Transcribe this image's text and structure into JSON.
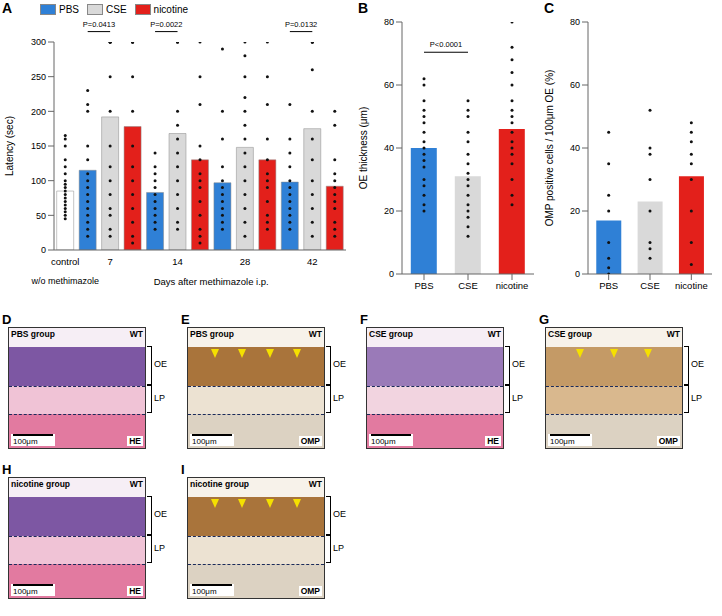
{
  "chart_data": [
    {
      "panel": "A",
      "type": "bar",
      "y_label": "Latency (sec)",
      "ylim": [
        0,
        300
      ],
      "yticks": [
        0,
        50,
        100,
        150,
        200,
        250,
        300
      ],
      "legend": "top-left",
      "control": {
        "category": "control",
        "group_label": "w/o methimazole",
        "color": "#ffffff",
        "value": 85,
        "points": [
          165,
          160,
          150,
          130,
          120,
          110,
          100,
          95,
          90,
          85,
          80,
          75,
          70,
          65,
          60,
          55,
          50,
          45
        ]
      },
      "x_label": "Days after methimazole i.p.",
      "categories": [
        "7",
        "14",
        "28",
        "42"
      ],
      "series": [
        {
          "name": "PBS",
          "color": "#2f80d6",
          "values": [
            115,
            83,
            97,
            98
          ],
          "points": [
            [
              230,
              210,
              200,
              150,
              130,
              110,
              100,
              90,
              80,
              70,
              60,
              50,
              40,
              30,
              20
            ],
            [
              140,
              120,
              110,
              100,
              90,
              80,
              70,
              60,
              50,
              40,
              30
            ],
            [
              290,
              200,
              160,
              120,
              100,
              90,
              80,
              70,
              60,
              50,
              40,
              30
            ],
            [
              210,
              160,
              140,
              120,
              100,
              90,
              80,
              70,
              60,
              50,
              40,
              30
            ]
          ]
        },
        {
          "name": "CSE",
          "color": "#d9d9d9",
          "values": [
            192,
            168,
            148,
            175
          ],
          "points": [
            [
              300,
              300,
              300,
              300,
              300,
              250,
              200,
              150,
              120,
              100,
              80,
              60,
              50,
              30,
              20
            ],
            [
              300,
              300,
              300,
              200,
              180,
              160,
              140,
              120,
              100,
              80,
              60,
              40,
              30
            ],
            [
              300,
              280,
              250,
              220,
              200,
              180,
              160,
              140,
              120,
              100,
              80,
              60,
              40,
              20
            ],
            [
              300,
              300,
              300,
              300,
              260,
              200,
              160,
              130,
              100,
              80,
              60,
              40,
              20
            ]
          ]
        },
        {
          "name": "nicotine",
          "color": "#e3201b",
          "values": [
            178,
            130,
            130,
            92
          ],
          "points": [
            [
              300,
              300,
              300,
              300,
              250,
              200,
              150,
              120,
              100,
              80,
              60,
              40,
              20,
              10
            ],
            [
              300,
              250,
              210,
              150,
              130,
              110,
              100,
              90,
              70,
              50,
              30,
              20,
              10
            ],
            [
              300,
              250,
              210,
              160,
              130,
              110,
              100,
              90,
              70,
              50,
              40,
              30
            ],
            [
              200,
              180,
              130,
              110,
              100,
              90,
              80,
              70,
              60,
              40,
              30,
              20
            ]
          ]
        }
      ],
      "annotations": [
        {
          "text": "P=0.0413",
          "category": "7",
          "from": "PBS",
          "to": "CSE"
        },
        {
          "text": "P=0.0022",
          "category": "14",
          "from": "PBS",
          "to": "CSE"
        },
        {
          "text": "P=0.0132",
          "category": "42",
          "from": "PBS",
          "to": "CSE"
        }
      ]
    },
    {
      "panel": "B",
      "type": "bar",
      "y_label": "OE thickness (μm)",
      "ylim": [
        0,
        80
      ],
      "yticks": [
        0,
        20,
        40,
        60,
        80
      ],
      "categories": [
        "PBS",
        "CSE",
        "nicotine"
      ],
      "values": [
        40,
        31,
        46
      ],
      "colors": [
        "#2f80d6",
        "#d9d9d9",
        "#e3201b"
      ],
      "points": [
        [
          62,
          60,
          55,
          52,
          50,
          48,
          45,
          42,
          40,
          38,
          36,
          34,
          30,
          28,
          25,
          22,
          20
        ],
        [
          55,
          52,
          50,
          45,
          42,
          38,
          35,
          32,
          30,
          28,
          25,
          22,
          20,
          18,
          15,
          12
        ],
        [
          80,
          72,
          68,
          64,
          60,
          55,
          52,
          50,
          48,
          45,
          42,
          40,
          38,
          35,
          30,
          25,
          22
        ]
      ],
      "annotations": [
        {
          "text": "P<0.0001",
          "from": "PBS",
          "to": "CSE"
        }
      ]
    },
    {
      "panel": "C",
      "type": "bar",
      "y_label": "OMP positive cells / 100μm OE (%)",
      "ylim": [
        0,
        80
      ],
      "yticks": [
        0,
        20,
        40,
        60,
        80
      ],
      "categories": [
        "PBS",
        "CSE",
        "nicotine"
      ],
      "values": [
        17,
        23,
        31
      ],
      "colors": [
        "#2f80d6",
        "#d9d9d9",
        "#e3201b"
      ],
      "points": [
        [
          45,
          35,
          25,
          20,
          10,
          5,
          2,
          0
        ],
        [
          52,
          40,
          38,
          30,
          20,
          10,
          8,
          5
        ],
        [
          48,
          45,
          42,
          38,
          35,
          30,
          20,
          10,
          3
        ]
      ],
      "annotations": []
    }
  ],
  "image_panels": [
    {
      "panel": "D",
      "group": "PBS group",
      "genotype": "WT",
      "stain": "HE",
      "scale_bar": "100μm",
      "layers": [
        "OE",
        "LP"
      ],
      "arrowheads": 0,
      "colors": [
        "#f6eef5",
        "#7d57a3",
        "#f0c3d6",
        "#e27aa0"
      ]
    },
    {
      "panel": "E",
      "group": "PBS group",
      "genotype": "WT",
      "stain": "OMP",
      "scale_bar": "100μm",
      "layers": [
        "OE",
        "LP"
      ],
      "arrowheads": 4,
      "colors": [
        "#f7f2ea",
        "#a9743b",
        "#ece2d2",
        "#dcd2c2"
      ]
    },
    {
      "panel": "F",
      "group": "CSE group",
      "genotype": "WT",
      "stain": "HE",
      "scale_bar": "100μm",
      "layers": [
        "OE",
        "LP"
      ],
      "arrowheads": 0,
      "colors": [
        "#f6eef5",
        "#9a7ab8",
        "#f2d4e0",
        "#e27aa0"
      ]
    },
    {
      "panel": "G",
      "group": "CSE group",
      "genotype": "WT",
      "stain": "OMP",
      "scale_bar": "100μm",
      "layers": [
        "OE",
        "LP"
      ],
      "arrowheads": 3,
      "colors": [
        "#f7f2ea",
        "#c49a66",
        "#d9b88e",
        "#dcd2c2"
      ]
    },
    {
      "panel": "H",
      "group": "nicotine group",
      "genotype": "WT",
      "stain": "HE",
      "scale_bar": "100μm",
      "layers": [
        "OE",
        "LP"
      ],
      "arrowheads": 0,
      "colors": [
        "#f6eef5",
        "#7d57a3",
        "#f0c3d6",
        "#e27aa0"
      ]
    },
    {
      "panel": "I",
      "group": "nicotine group",
      "genotype": "WT",
      "stain": "OMP",
      "scale_bar": "100μm",
      "layers": [
        "OE",
        "LP"
      ],
      "arrowheads": 4,
      "colors": [
        "#f7f2ea",
        "#a9743b",
        "#ece2d2",
        "#dcd2c2"
      ]
    }
  ]
}
